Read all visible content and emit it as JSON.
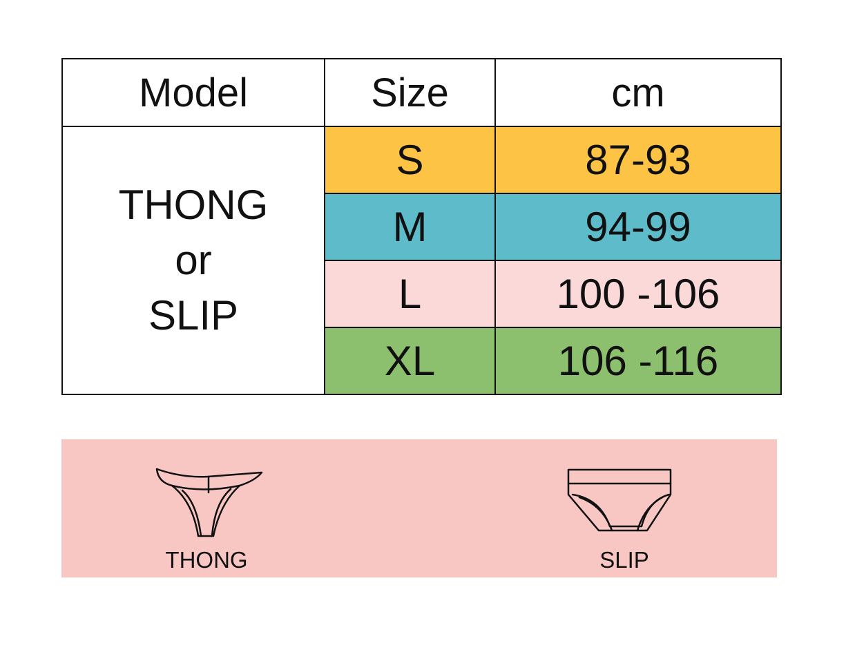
{
  "table": {
    "headers": [
      "Model",
      "Size",
      "cm"
    ],
    "model_lines": [
      "THONG",
      "or",
      "SLIP"
    ],
    "rows": [
      {
        "size": "S",
        "cm": "87-93",
        "color": "#FCC345"
      },
      {
        "size": "M",
        "cm": "94-99",
        "color": "#5EBBCA"
      },
      {
        "size": "L",
        "cm": "100 -106",
        "color": "#FAD9D8"
      },
      {
        "size": "XL",
        "cm": "106 -116",
        "color": "#8CBF6E"
      }
    ],
    "border_color": "#111111"
  },
  "panel": {
    "background": "#F8C7C3",
    "items": [
      {
        "label": "THONG",
        "icon": "thong-icon"
      },
      {
        "label": "SLIP",
        "icon": "slip-icon"
      }
    ]
  }
}
